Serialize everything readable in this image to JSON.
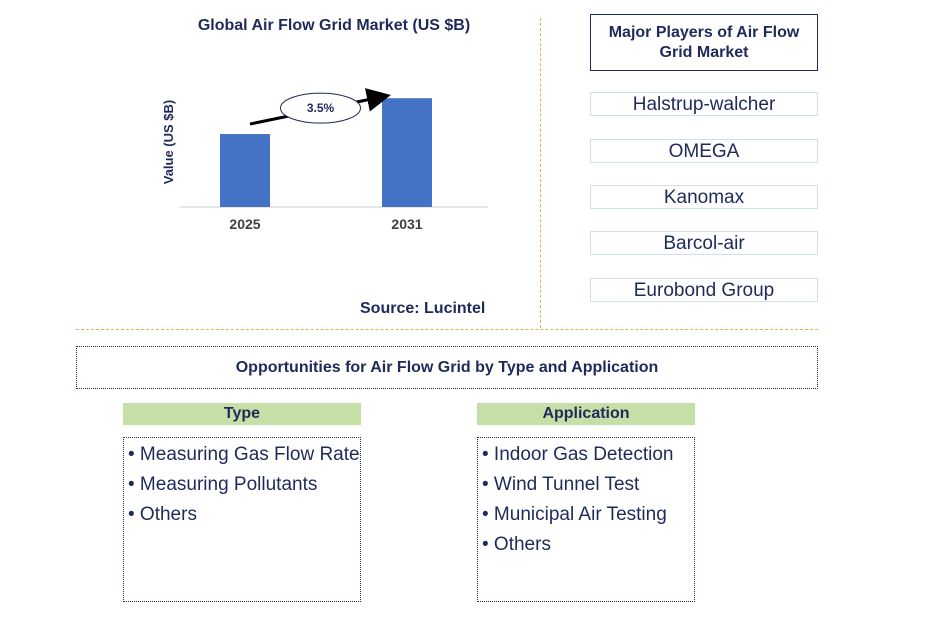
{
  "chart_data": {
    "type": "bar",
    "title": "Global Air Flow Grid Market (US $B)",
    "ylabel": "Value (US $B)",
    "categories": [
      "2025",
      "2031"
    ],
    "values": [
      0.57,
      0.85
    ],
    "ylim": [
      0,
      1
    ],
    "bar_color": "#4472c4",
    "annotation": "3.5%",
    "source": "Source: Lucintel"
  },
  "players": {
    "title": "Major Players of Air Flow Grid Market",
    "items": [
      "Halstrup-walcher",
      "OMEGA",
      "Kanomax",
      "Barcol-air",
      "Eurobond Group"
    ]
  },
  "opportunities": {
    "title": "Opportunities for Air Flow Grid by Type and Application",
    "type": {
      "header": "Type",
      "items": [
        "• Measuring Gas Flow Rate",
        "• Measuring Pollutants",
        "• Others"
      ]
    },
    "application": {
      "header": "Application",
      "items": [
        "• Indoor Gas Detection",
        "• Wind Tunnel Test",
        "• Municipal Air Testing",
        "• Others"
      ]
    }
  },
  "colors": {
    "text": "#1f2a5a",
    "divider": "#e2b24a",
    "header_fill": "#c5e0a6"
  }
}
